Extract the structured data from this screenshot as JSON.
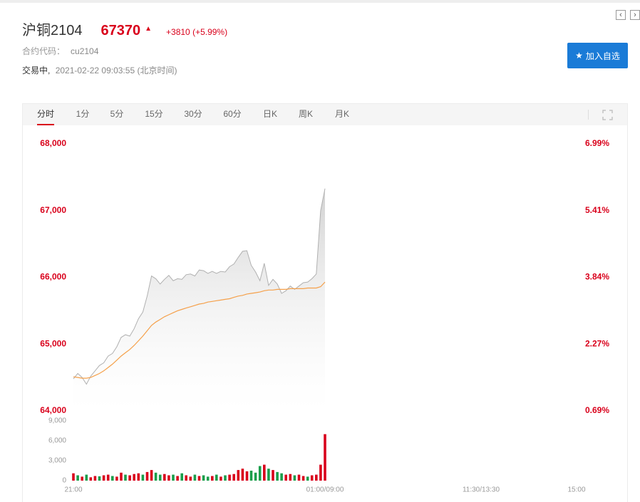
{
  "header": {
    "name": "沪铜2104",
    "price": "67370",
    "change": "+3810 (+5.99%)",
    "code_label": "合约代码：",
    "code_value": "cu2104",
    "status": "交易中,",
    "timestamp": "2021-02-22 09:03:55 (北京时间)",
    "watch_button": "加入自选",
    "prev_icon": "chevron-left-icon",
    "next_icon": "chevron-right-icon"
  },
  "tabs": [
    "分时",
    "1分",
    "5分",
    "15分",
    "30分",
    "60分",
    "日K",
    "周K",
    "月K"
  ],
  "active_tab": 0,
  "colors": {
    "up": "#d9001b",
    "down": "#1a9e4b",
    "avg": "#f5a04a",
    "accent": "#1a7bd7",
    "price_line": "#b0b0b0"
  },
  "chart_data": {
    "type": "line",
    "price_axis": {
      "ylim": [
        64000,
        68000
      ],
      "ticks": [
        "68,000",
        "67,000",
        "66,000",
        "65,000",
        "64,000"
      ]
    },
    "pct_axis": {
      "ticks": [
        "6.99%",
        "5.41%",
        "3.84%",
        "2.27%",
        "0.69%"
      ]
    },
    "volume_axis": {
      "ylim": [
        0,
        9000
      ],
      "ticks": [
        "9,000",
        "6,000",
        "3,000",
        "0"
      ]
    },
    "x_axis": {
      "ticks": [
        "21:00",
        "01:00/09:00",
        "11:30/13:30",
        "15:00"
      ]
    },
    "price_series": [
      64480,
      64560,
      64500,
      64400,
      64520,
      64600,
      64680,
      64720,
      64820,
      64860,
      64960,
      65100,
      65140,
      65120,
      65230,
      65380,
      65480,
      65720,
      66020,
      65980,
      65900,
      65970,
      66030,
      65950,
      65980,
      65970,
      66040,
      66050,
      66020,
      66110,
      66100,
      66060,
      66090,
      66060,
      66090,
      66080,
      66160,
      66200,
      66300,
      66390,
      66400,
      66180,
      66080,
      65950,
      66210,
      65880,
      65970,
      65900,
      65760,
      65800,
      65870,
      65820,
      65870,
      65920,
      65930,
      65980,
      66050,
      67000,
      67330
    ],
    "avg_series": [
      64510,
      64500,
      64490,
      64490,
      64500,
      64530,
      64560,
      64600,
      64650,
      64700,
      64760,
      64820,
      64870,
      64920,
      64980,
      65050,
      65120,
      65200,
      65280,
      65330,
      65370,
      65410,
      65440,
      65470,
      65500,
      65520,
      65540,
      65560,
      65580,
      65600,
      65610,
      65630,
      65640,
      65650,
      65660,
      65670,
      65680,
      65700,
      65720,
      65730,
      65750,
      65760,
      65770,
      65780,
      65800,
      65810,
      65810,
      65820,
      65820,
      65820,
      65830,
      65830,
      65830,
      65830,
      65840,
      65840,
      65840,
      65860,
      65930
    ],
    "volume_series": [
      1100,
      800,
      600,
      900,
      500,
      700,
      650,
      800,
      900,
      700,
      600,
      1200,
      900,
      800,
      1000,
      1100,
      900,
      1300,
      1600,
      1200,
      900,
      1000,
      800,
      900,
      700,
      1100,
      800,
      600,
      900,
      700,
      800,
      600,
      700,
      900,
      600,
      800,
      900,
      1000,
      1600,
      1800,
      1400,
      1500,
      1200,
      2200,
      2400,
      1800,
      1600,
      1300,
      1100,
      900,
      1000,
      800,
      900,
      700,
      600,
      800,
      900,
      2400,
      7000
    ],
    "volume_up": [
      1,
      0,
      1,
      0,
      1,
      1,
      0,
      1,
      1,
      0,
      1,
      1,
      0,
      1,
      1,
      1,
      0,
      1,
      1,
      0,
      0,
      1,
      1,
      0,
      1,
      0,
      1,
      1,
      0,
      1,
      0,
      0,
      1,
      0,
      1,
      0,
      1,
      1,
      1,
      1,
      1,
      0,
      0,
      0,
      1,
      0,
      1,
      0,
      0,
      1,
      1,
      0,
      1,
      1,
      0,
      1,
      1,
      1,
      1
    ],
    "session_fraction_shown": 0.5
  }
}
